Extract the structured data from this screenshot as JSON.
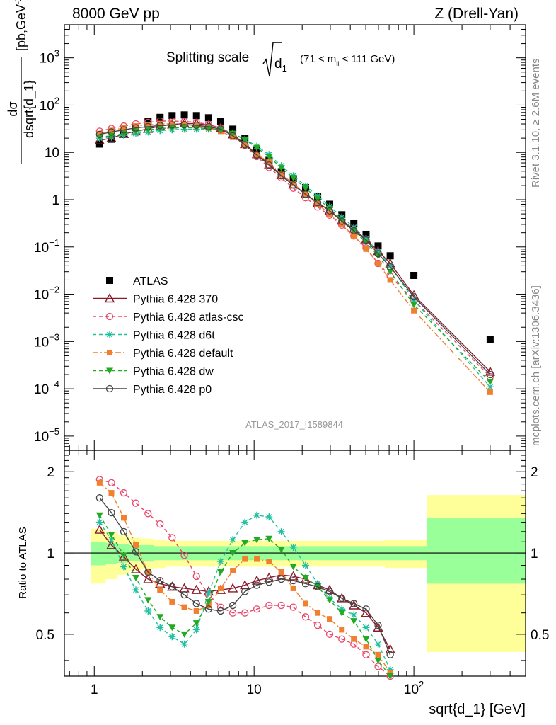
{
  "header": {
    "left": "8000 GeV pp",
    "right": "Z (Drell-Yan)"
  },
  "side_labels": {
    "rivet": "Rivet 3.1.10, ≥ 2.6M events",
    "mcplots": "mcplots.cern.ch [arXiv:1306.3436]"
  },
  "chart_data": [
    {
      "type": "scatter",
      "title": "Splitting scale √d₁ (71 < mₗₗ < 111 GeV)",
      "title_main": "Splitting scale",
      "title_var": "d",
      "title_sub": "1",
      "title_range": "(71 < m",
      "title_range_sub": "ll",
      "title_range_end": " < 111 GeV)",
      "ylabel": "dσ / dsqrt{d_1} [pb,GeV⁻¹]",
      "ylabel_num": "dσ",
      "ylabel_den": "dsqrt{d_1}",
      "ylabel_unit": "[pb,GeV",
      "ylabel_unit_sup": "-1",
      "ylabel_unit_end": "]",
      "xscale": "log",
      "yscale": "log",
      "xlim": [
        0.65,
        500
      ],
      "ylim": [
        5e-06,
        5000
      ],
      "watermark": "ATLAS_2017_I1589844",
      "ytick_labels": [
        {
          "value": 1e-05,
          "base": "10",
          "exp": "−5"
        },
        {
          "value": 0.0001,
          "base": "10",
          "exp": "−4"
        },
        {
          "value": 0.001,
          "base": "10",
          "exp": "−3"
        },
        {
          "value": 0.01,
          "base": "10",
          "exp": "−2"
        },
        {
          "value": 0.1,
          "base": "10",
          "exp": "−1"
        },
        {
          "value": 1,
          "base": "1",
          "exp": ""
        },
        {
          "value": 10,
          "base": "10",
          "exp": ""
        },
        {
          "value": 100,
          "base": "10",
          "exp": "2"
        },
        {
          "value": 1000,
          "base": "10",
          "exp": "3"
        }
      ],
      "x": [
        1.08,
        1.28,
        1.53,
        1.82,
        2.17,
        2.58,
        3.07,
        3.66,
        4.36,
        5.19,
        6.18,
        7.36,
        8.76,
        10.4,
        12.4,
        14.8,
        17.6,
        21.0,
        25.0,
        29.7,
        35.4,
        42.1,
        50.2,
        59.7,
        71.1,
        100.0,
        300.0
      ],
      "series": [
        {
          "name": "ATLAS",
          "color": "#000000",
          "marker": "square",
          "line": "none",
          "values": [
            15,
            19,
            25,
            34,
            45,
            55,
            60,
            62,
            60,
            54,
            45,
            31,
            20,
            11.5,
            6.8,
            3.9,
            2.8,
            1.8,
            1.15,
            0.8,
            0.48,
            0.31,
            0.185,
            0.105,
            0.065,
            0.025,
            0.0011
          ]
        },
        {
          "name": "Pythia 6.428 370",
          "color": "#8b1a2a",
          "marker": "triangle-open",
          "line": "solid",
          "values": [
            18,
            20,
            24.5,
            28,
            31.5,
            36,
            39,
            41,
            40.5,
            38,
            33,
            24,
            15,
            9.2,
            5.6,
            3.3,
            2.1,
            1.32,
            0.86,
            0.59,
            0.36,
            0.24,
            0.145,
            0.082,
            0.045,
            0.0095,
            0.00023
          ]
        },
        {
          "name": "Pythia 6.428 atlas-csc",
          "color": "#e8476a",
          "marker": "circle-open",
          "line": "dashed",
          "values": [
            28,
            32,
            36,
            40,
            43,
            46,
            46,
            45,
            43,
            39,
            33,
            23,
            14,
            8.2,
            4.8,
            2.9,
            1.75,
            1.1,
            0.7,
            0.47,
            0.29,
            0.17,
            0.095,
            0.045,
            0.024,
            0.0075,
            0.00018
          ]
        },
        {
          "name": "Pythia 6.428 d6t",
          "color": "#20c0a0",
          "marker": "asterisk",
          "line": "dashed",
          "values": [
            20,
            21,
            23,
            25,
            27,
            29,
            30,
            31,
            31,
            31,
            30,
            25,
            19,
            13.5,
            9,
            5.2,
            3.2,
            1.95,
            1.2,
            0.72,
            0.43,
            0.26,
            0.15,
            0.08,
            0.04,
            0.0075,
            0.00011
          ]
        },
        {
          "name": "Pythia 6.428 default",
          "color": "#f08030",
          "marker": "square-filled",
          "line": "dashdot",
          "values": [
            25,
            29,
            33,
            36,
            38,
            40,
            40,
            39,
            37,
            33,
            28,
            21,
            14,
            9,
            6.3,
            3.4,
            2.2,
            1.3,
            0.8,
            0.5,
            0.3,
            0.17,
            0.09,
            0.045,
            0.02,
            0.0045,
            8.5e-05
          ]
        },
        {
          "name": "Pythia 6.428 dw",
          "color": "#22aa22",
          "marker": "triangle-down",
          "line": "dashed",
          "values": [
            21,
            22.5,
            25,
            28,
            30,
            32,
            33,
            33.5,
            33,
            32,
            30,
            25,
            18.5,
            12.5,
            8.2,
            4.7,
            2.9,
            1.75,
            1.05,
            0.65,
            0.38,
            0.22,
            0.125,
            0.065,
            0.03,
            0.006,
            0.00014
          ]
        },
        {
          "name": "Pythia 6.428 p0",
          "color": "#444444",
          "marker": "circle-open",
          "line": "solid",
          "values": [
            24,
            27,
            30,
            33,
            35,
            37,
            38,
            38.5,
            37.5,
            35,
            31,
            22.5,
            14.5,
            8.8,
            5.4,
            3.2,
            2.05,
            1.3,
            0.86,
            0.58,
            0.35,
            0.22,
            0.14,
            0.072,
            0.038,
            0.0088,
            0.0002
          ]
        }
      ]
    },
    {
      "type": "line",
      "ylabel": "Ratio to ATLAS",
      "xlabel": "sqrt{d_1} [GeV]",
      "xscale": "log",
      "xlim": [
        0.65,
        500
      ],
      "ylim": [
        0.35,
        2.4
      ],
      "yticks": [
        0.5,
        1,
        2
      ],
      "ytick_labels": [
        "0.5",
        "1",
        "2"
      ],
      "xtick_labels": [
        {
          "value": 1,
          "base": "1",
          "exp": ""
        },
        {
          "value": 10,
          "base": "10",
          "exp": ""
        },
        {
          "value": 100,
          "base": "10",
          "exp": "2"
        }
      ],
      "band_x": [
        0.95,
        1.18,
        1.4,
        1.66,
        1.98,
        2.36,
        2.81,
        3.35,
        3.99,
        4.75,
        5.65,
        6.74,
        8.03,
        9.57,
        11.4,
        13.6,
        16.2,
        19.3,
        23.0,
        27.4,
        32.6,
        38.9,
        46.3,
        55.2,
        65.7,
        78.3,
        120.0,
        500.0
      ],
      "band_outer_lo": [
        0.77,
        0.8,
        0.83,
        0.86,
        0.87,
        0.88,
        0.89,
        0.89,
        0.89,
        0.89,
        0.89,
        0.89,
        0.89,
        0.89,
        0.89,
        0.89,
        0.89,
        0.89,
        0.89,
        0.89,
        0.89,
        0.89,
        0.89,
        0.89,
        0.88,
        0.88,
        0.43
      ],
      "band_outer_hi": [
        1.23,
        1.2,
        1.17,
        1.14,
        1.13,
        1.12,
        1.11,
        1.11,
        1.11,
        1.11,
        1.11,
        1.11,
        1.11,
        1.11,
        1.11,
        1.11,
        1.11,
        1.11,
        1.11,
        1.11,
        1.11,
        1.11,
        1.11,
        1.11,
        1.12,
        1.12,
        1.64
      ],
      "band_inner_lo": [
        0.9,
        0.91,
        0.92,
        0.93,
        0.93,
        0.94,
        0.94,
        0.94,
        0.94,
        0.94,
        0.94,
        0.94,
        0.94,
        0.94,
        0.94,
        0.94,
        0.94,
        0.94,
        0.94,
        0.94,
        0.94,
        0.94,
        0.94,
        0.94,
        0.94,
        0.94,
        0.77
      ],
      "band_inner_hi": [
        1.1,
        1.09,
        1.08,
        1.07,
        1.07,
        1.06,
        1.06,
        1.06,
        1.06,
        1.06,
        1.06,
        1.06,
        1.06,
        1.06,
        1.06,
        1.06,
        1.06,
        1.06,
        1.06,
        1.06,
        1.06,
        1.06,
        1.06,
        1.06,
        1.06,
        1.06,
        1.35
      ],
      "x": [
        1.08,
        1.28,
        1.53,
        1.82,
        2.17,
        2.58,
        3.07,
        3.66,
        4.36,
        5.19,
        6.18,
        7.36,
        8.76,
        10.4,
        12.4,
        14.8,
        17.6,
        21.0,
        25.0,
        29.7,
        35.4,
        42.1,
        50.2,
        59.7,
        71.1
      ],
      "series": [
        {
          "name": "Pythia 6.428 370",
          "color": "#8b1a2a",
          "marker": "triangle-open",
          "line": "solid",
          "values": [
            1.22,
            1.07,
            0.97,
            0.87,
            0.8,
            0.77,
            0.75,
            0.74,
            0.73,
            0.72,
            0.73,
            0.74,
            0.76,
            0.79,
            0.81,
            0.83,
            0.82,
            0.8,
            0.76,
            0.73,
            0.68,
            0.64,
            0.6,
            0.53,
            0.44
          ]
        },
        {
          "name": "Pythia 6.428 atlas-csc",
          "color": "#e8476a",
          "marker": "circle-open",
          "line": "dashed",
          "values": [
            1.87,
            1.82,
            1.67,
            1.53,
            1.4,
            1.28,
            1.14,
            0.98,
            0.82,
            0.7,
            0.63,
            0.6,
            0.6,
            0.62,
            0.64,
            0.64,
            0.63,
            0.58,
            0.54,
            0.5,
            0.48,
            0.46,
            0.42,
            0.38,
            0.35
          ]
        },
        {
          "name": "Pythia 6.428 d6t",
          "color": "#20c0a0",
          "marker": "asterisk",
          "line": "dashed",
          "values": [
            1.3,
            1.12,
            0.89,
            0.73,
            0.61,
            0.53,
            0.49,
            0.46,
            0.52,
            0.71,
            0.93,
            1.12,
            1.3,
            1.38,
            1.36,
            1.2,
            1.05,
            0.9,
            0.77,
            0.68,
            0.62,
            0.59,
            0.53,
            0.46,
            0.37
          ]
        },
        {
          "name": "Pythia 6.428 default",
          "color": "#f08030",
          "marker": "square-filled",
          "line": "dashdot",
          "values": [
            1.82,
            1.67,
            1.35,
            1.07,
            0.85,
            0.73,
            0.66,
            0.63,
            0.61,
            0.64,
            0.74,
            0.86,
            0.95,
            0.95,
            0.93,
            0.85,
            0.74,
            0.65,
            0.6,
            0.57,
            0.52,
            0.48,
            0.45,
            0.42,
            0.36
          ]
        },
        {
          "name": "Pythia 6.428 dw",
          "color": "#22aa22",
          "marker": "triangle-down",
          "line": "dashed",
          "values": [
            1.38,
            1.17,
            0.98,
            0.81,
            0.67,
            0.58,
            0.53,
            0.5,
            0.55,
            0.66,
            0.85,
            1.0,
            1.09,
            1.12,
            1.13,
            1.03,
            0.89,
            0.81,
            0.75,
            0.67,
            0.6,
            0.56,
            0.48,
            0.4,
            0.35
          ]
        },
        {
          "name": "Pythia 6.428 p0",
          "color": "#444444",
          "marker": "circle-open",
          "line": "solid",
          "values": [
            1.6,
            1.41,
            1.2,
            1.01,
            0.85,
            0.79,
            0.75,
            0.7,
            0.65,
            0.62,
            0.61,
            0.64,
            0.72,
            0.76,
            0.78,
            0.8,
            0.79,
            0.77,
            0.75,
            0.72,
            0.68,
            0.65,
            0.62,
            0.54,
            0.42
          ]
        }
      ]
    }
  ]
}
